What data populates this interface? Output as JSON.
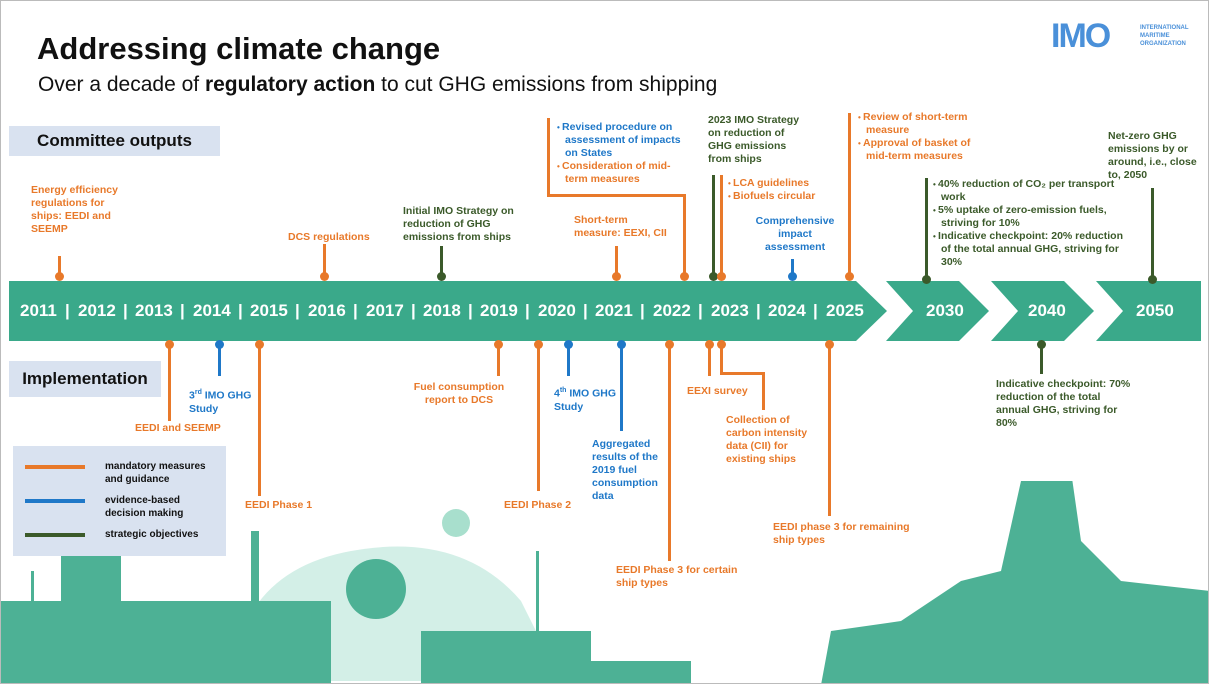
{
  "title": "Addressing climate change",
  "subtitle": {
    "pre": "Over a decade of ",
    "bold": "regulatory action",
    "post": " to cut GHG emissions from shipping"
  },
  "logo": {
    "mark": "IMO",
    "line1": "INTERNATIONAL",
    "line2": "MARITIME",
    "line3": "ORGANIZATION",
    "color": "#4a90d9"
  },
  "sections": {
    "committee": "Committee outputs",
    "implementation": "Implementation"
  },
  "colors": {
    "timeline": "#3aa98a",
    "mandatory": "#e8792a",
    "evidence": "#1f78c8",
    "strategic": "#3b5a2a"
  },
  "years": [
    "2011",
    "2012",
    "2013",
    "2014",
    "2015",
    "2016",
    "2017",
    "2018",
    "2019",
    "2020",
    "2021",
    "2022",
    "2023",
    "2024",
    "2025"
  ],
  "milestones": [
    "2030",
    "2040",
    "2050"
  ],
  "committee_outputs": {
    "energy": "Energy efficiency regulations for ships: EEDI and SEEMP",
    "dcs": "DCS regulations",
    "initial": "Initial IMO Strategy on reduction of GHG emissions from ships",
    "revised": [
      "Revised procedure on assessment of impacts on States",
      "Consideration of mid-term measures"
    ],
    "shortterm": "Short-term measure: EEXI, CII",
    "strategy2023": "2023 IMO Strategy on reduction of GHG emissions from ships",
    "lca": [
      "LCA guidelines",
      "Biofuels circular"
    ],
    "comprehensive": "Comprehensive impact assessment",
    "review": [
      "Review of short-term measure",
      "Approval of basket of mid-term measures"
    ],
    "y2030": [
      "40% reduction of CO₂ per transport work",
      "5% uptake of zero-emission fuels, striving for 10%",
      "Indicative checkpoint: 20% reduction of the total annual GHG, striving for 30%"
    ],
    "netzero": "Net-zero GHG emissions by or around, i.e., close to, 2050"
  },
  "implementation": {
    "eedi_seemp": "EEDI and SEEMP",
    "ghg3_pre": "3",
    "ghg3_sup": "rd",
    "ghg3_post": " IMO GHG Study",
    "phase1": "EEDI Phase 1",
    "fuel": "Fuel consumption report to DCS",
    "phase2": "EEDI Phase 2",
    "ghg4_pre": "4",
    "ghg4_sup": "th",
    "ghg4_post": " IMO GHG Study",
    "aggregated": "Aggregated results of the 2019 fuel consumption data",
    "phase3a": "EEDI Phase 3 for certain ship types",
    "eexi": "EEXI survey",
    "cii": "Collection of carbon intensity data (CII) for existing ships",
    "phase3b": "EEDI phase 3 for remaining ship types",
    "y2040": "Indicative checkpoint: 70% reduction of the total annual GHG, striving for 80%"
  },
  "legend": [
    {
      "label": "mandatory measures and guidance",
      "color": "#e8792a"
    },
    {
      "label": "evidence-based decision making",
      "color": "#1f78c8"
    },
    {
      "label": "strategic objectives",
      "color": "#3b5a2a"
    }
  ]
}
